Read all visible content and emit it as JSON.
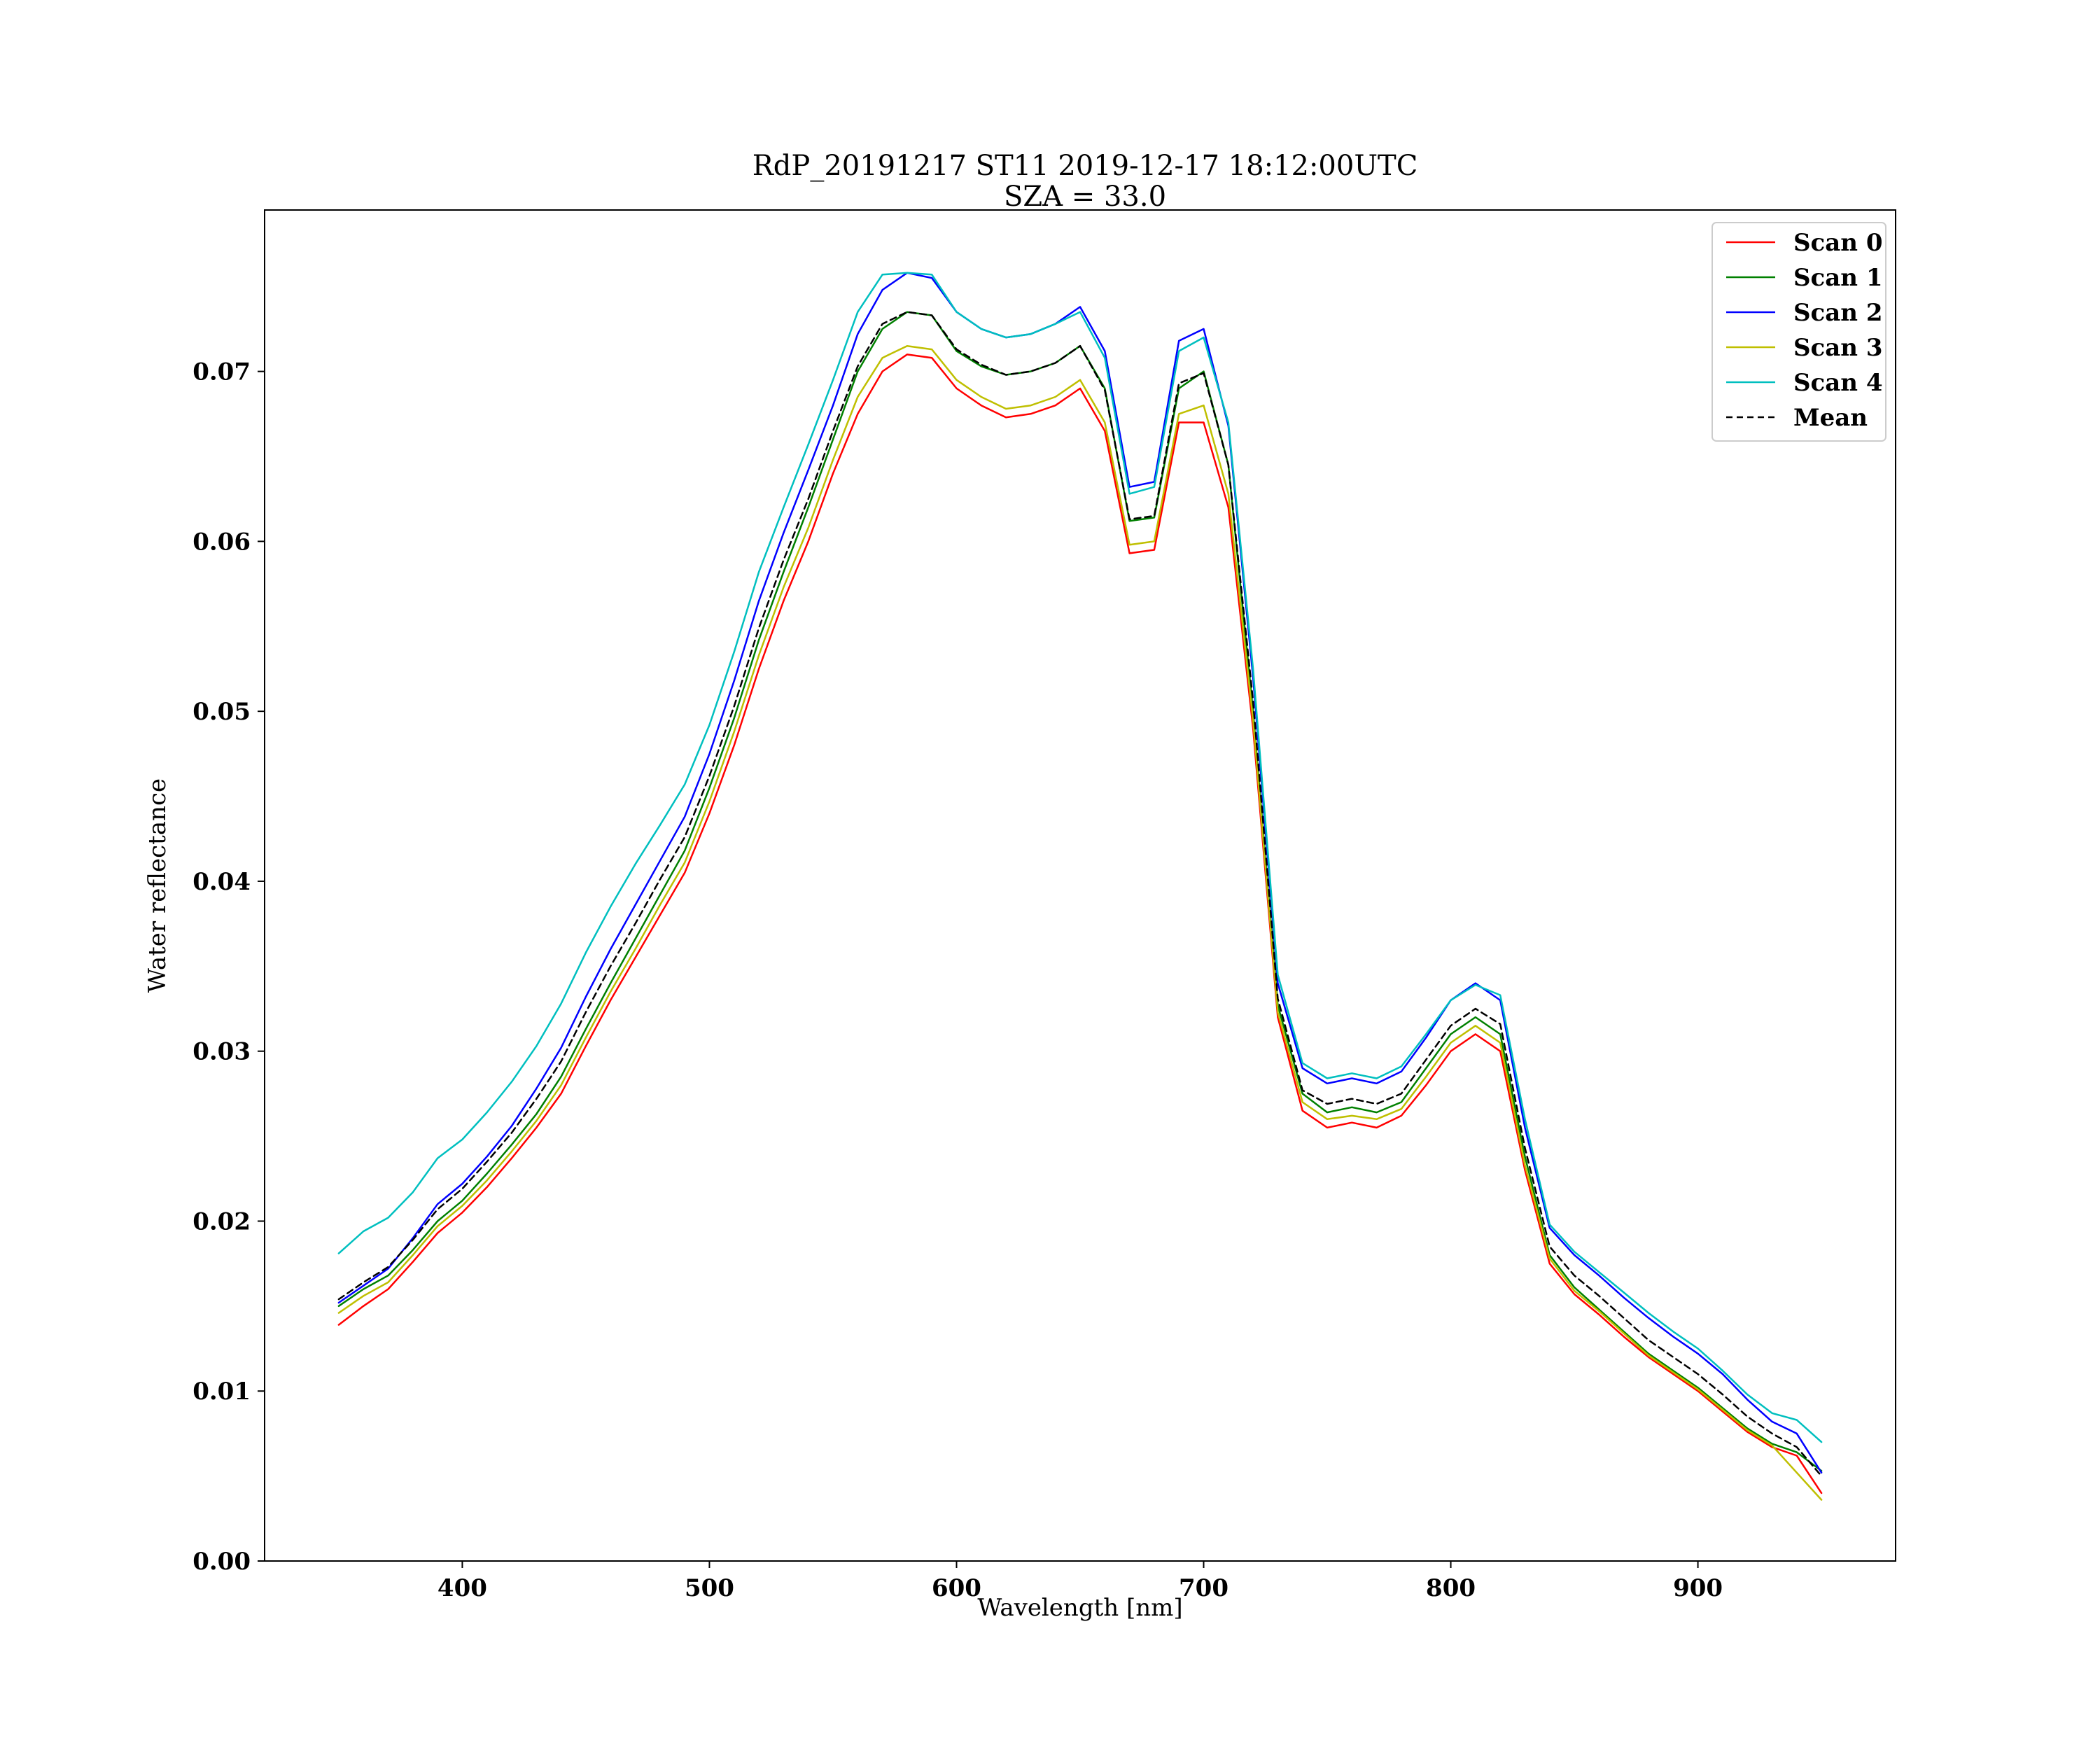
{
  "chart_data": {
    "type": "line",
    "title": "RdP_20191217 ST11 2019-12-17 18:12:00UTC",
    "subtitle": "SZA = 33.0",
    "xlabel": "Wavelength [nm]",
    "ylabel": "Water reflectance",
    "xlim": [
      320,
      980
    ],
    "ylim": [
      0.0,
      0.0795
    ],
    "xticks": [
      400,
      500,
      600,
      700,
      800,
      900
    ],
    "xtick_labels": [
      "400",
      "500",
      "600",
      "700",
      "800",
      "900"
    ],
    "yticks": [
      0.0,
      0.01,
      0.02,
      0.03,
      0.04,
      0.05,
      0.06,
      0.07
    ],
    "ytick_labels": [
      "0.00",
      "0.01",
      "0.02",
      "0.03",
      "0.04",
      "0.05",
      "0.06",
      "0.07"
    ],
    "grid": false,
    "legend_position": "top-right",
    "x": [
      350,
      360,
      370,
      380,
      390,
      400,
      410,
      420,
      430,
      440,
      450,
      460,
      470,
      480,
      490,
      500,
      510,
      520,
      530,
      540,
      550,
      560,
      570,
      580,
      590,
      600,
      610,
      620,
      630,
      640,
      650,
      660,
      670,
      680,
      690,
      700,
      710,
      720,
      730,
      740,
      750,
      760,
      770,
      780,
      790,
      800,
      810,
      820,
      830,
      840,
      850,
      860,
      870,
      880,
      890,
      900,
      910,
      920,
      930,
      940,
      950
    ],
    "series": [
      {
        "name": "Scan 0",
        "color": "#ff0000",
        "dashed": false,
        "values": [
          0.0139,
          0.015,
          0.016,
          0.0176,
          0.0193,
          0.0205,
          0.022,
          0.0237,
          0.0255,
          0.0275,
          0.0303,
          0.033,
          0.0355,
          0.038,
          0.0405,
          0.044,
          0.048,
          0.0525,
          0.0565,
          0.06,
          0.064,
          0.0675,
          0.07,
          0.071,
          0.0708,
          0.069,
          0.068,
          0.0673,
          0.0675,
          0.068,
          0.069,
          0.0665,
          0.0593,
          0.0595,
          0.067,
          0.067,
          0.062,
          0.049,
          0.032,
          0.0265,
          0.0255,
          0.0258,
          0.0255,
          0.0262,
          0.028,
          0.03,
          0.031,
          0.03,
          0.023,
          0.0175,
          0.0157,
          0.0145,
          0.0132,
          0.012,
          0.011,
          0.01,
          0.0088,
          0.0076,
          0.0067,
          0.0062,
          0.004
        ]
      },
      {
        "name": "Scan 1",
        "color": "#008000",
        "dashed": false,
        "values": [
          0.015,
          0.016,
          0.0168,
          0.0183,
          0.02,
          0.0212,
          0.0228,
          0.0245,
          0.0263,
          0.0285,
          0.0313,
          0.034,
          0.0366,
          0.0392,
          0.0418,
          0.0455,
          0.0496,
          0.0542,
          0.0582,
          0.062,
          0.066,
          0.07,
          0.0725,
          0.0735,
          0.0733,
          0.0712,
          0.0703,
          0.0698,
          0.07,
          0.0705,
          0.0715,
          0.069,
          0.0612,
          0.0614,
          0.069,
          0.07,
          0.0645,
          0.05,
          0.0327,
          0.0275,
          0.0264,
          0.0267,
          0.0264,
          0.027,
          0.029,
          0.031,
          0.032,
          0.031,
          0.0238,
          0.018,
          0.0161,
          0.0148,
          0.0135,
          0.0122,
          0.0112,
          0.0102,
          0.009,
          0.0078,
          0.0069,
          0.0064,
          0.0053
        ]
      },
      {
        "name": "Scan 2",
        "color": "#0000ff",
        "dashed": false,
        "values": [
          0.0152,
          0.0162,
          0.0172,
          0.019,
          0.021,
          0.0222,
          0.0238,
          0.0256,
          0.0278,
          0.0302,
          0.0332,
          0.036,
          0.0386,
          0.0412,
          0.0438,
          0.0475,
          0.0518,
          0.0565,
          0.0605,
          0.0642,
          0.068,
          0.0722,
          0.0748,
          0.0758,
          0.0755,
          0.0735,
          0.0725,
          0.072,
          0.0722,
          0.0728,
          0.0738,
          0.0712,
          0.0632,
          0.0635,
          0.0718,
          0.0725,
          0.0668,
          0.052,
          0.034,
          0.029,
          0.0281,
          0.0284,
          0.0281,
          0.0288,
          0.0308,
          0.033,
          0.034,
          0.033,
          0.0255,
          0.0196,
          0.018,
          0.0168,
          0.0155,
          0.0143,
          0.0132,
          0.0122,
          0.011,
          0.0095,
          0.0082,
          0.0075,
          0.0052
        ]
      },
      {
        "name": "Scan 3",
        "color": "#bfbf00",
        "dashed": false,
        "values": [
          0.0146,
          0.0156,
          0.0164,
          0.018,
          0.0197,
          0.0209,
          0.0224,
          0.0241,
          0.0259,
          0.028,
          0.0308,
          0.0335,
          0.036,
          0.0386,
          0.0411,
          0.0447,
          0.0488,
          0.0533,
          0.0573,
          0.0608,
          0.0648,
          0.0685,
          0.0708,
          0.0715,
          0.0713,
          0.0695,
          0.0685,
          0.0678,
          0.068,
          0.0685,
          0.0695,
          0.067,
          0.0598,
          0.06,
          0.0675,
          0.068,
          0.0628,
          0.0495,
          0.0323,
          0.027,
          0.026,
          0.0262,
          0.026,
          0.0266,
          0.0285,
          0.0305,
          0.0315,
          0.0305,
          0.0233,
          0.0178,
          0.0159,
          0.0147,
          0.0134,
          0.0121,
          0.0111,
          0.0101,
          0.0089,
          0.0077,
          0.0068,
          0.0052,
          0.0036
        ]
      },
      {
        "name": "Scan 4",
        "color": "#00bfbf",
        "dashed": false,
        "values": [
          0.0181,
          0.0194,
          0.0202,
          0.0217,
          0.0237,
          0.0248,
          0.0264,
          0.0282,
          0.0303,
          0.0328,
          0.0358,
          0.0385,
          0.041,
          0.0433,
          0.0457,
          0.0492,
          0.0535,
          0.0582,
          0.062,
          0.0657,
          0.0695,
          0.0735,
          0.0757,
          0.0758,
          0.0757,
          0.0735,
          0.0725,
          0.072,
          0.0722,
          0.0728,
          0.0735,
          0.0708,
          0.0628,
          0.0632,
          0.0712,
          0.072,
          0.067,
          0.0525,
          0.0345,
          0.0293,
          0.0284,
          0.0287,
          0.0284,
          0.0291,
          0.031,
          0.033,
          0.0339,
          0.0333,
          0.026,
          0.0198,
          0.0182,
          0.017,
          0.0158,
          0.0146,
          0.0135,
          0.0125,
          0.0112,
          0.0098,
          0.0087,
          0.0083,
          0.007
        ]
      },
      {
        "name": "Mean",
        "color": "#000000",
        "dashed": true,
        "values": [
          0.0154,
          0.0164,
          0.0173,
          0.0189,
          0.0207,
          0.0219,
          0.0235,
          0.0252,
          0.0272,
          0.0294,
          0.0323,
          0.035,
          0.0375,
          0.0401,
          0.0426,
          0.0462,
          0.0503,
          0.0549,
          0.0589,
          0.0625,
          0.0665,
          0.0703,
          0.0728,
          0.0735,
          0.0733,
          0.0713,
          0.0704,
          0.0698,
          0.07,
          0.0705,
          0.0715,
          0.0689,
          0.0613,
          0.0615,
          0.0693,
          0.0699,
          0.0645,
          0.0506,
          0.0331,
          0.0277,
          0.0269,
          0.0272,
          0.0269,
          0.0275,
          0.0295,
          0.0315,
          0.0325,
          0.0316,
          0.0243,
          0.0185,
          0.0168,
          0.0156,
          0.0143,
          0.013,
          0.012,
          0.011,
          0.0098,
          0.0085,
          0.0075,
          0.0067,
          0.005
        ]
      }
    ]
  }
}
